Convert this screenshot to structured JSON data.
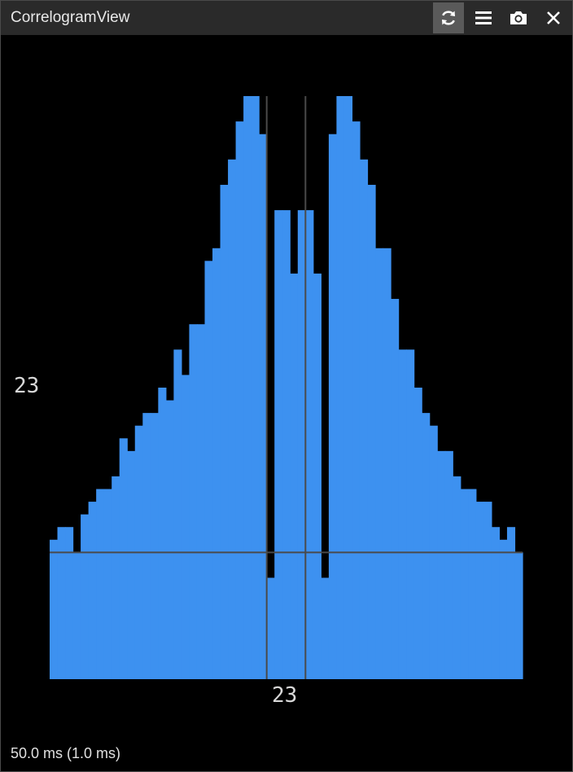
{
  "window": {
    "title": "CorrelogramView",
    "buttons": [
      {
        "name": "refresh-icon",
        "active": true
      },
      {
        "name": "menu-icon",
        "active": false
      },
      {
        "name": "camera-icon",
        "active": false
      },
      {
        "name": "close-icon",
        "active": false
      }
    ]
  },
  "chart_data": {
    "type": "bar",
    "bin_values": [
      11,
      12,
      12,
      10,
      13,
      14,
      15,
      15,
      16,
      19,
      18,
      20,
      21,
      21,
      23,
      22,
      26,
      24,
      28,
      28,
      33,
      34,
      39,
      41,
      44,
      46,
      46,
      43,
      8,
      37,
      37,
      32,
      37,
      37,
      32,
      8,
      43,
      46,
      46,
      44,
      41,
      39,
      34,
      34,
      30,
      26,
      26,
      23,
      21,
      20,
      18,
      18,
      16,
      15,
      15,
      14,
      14,
      12,
      11,
      12,
      10
    ],
    "baseline": 10,
    "ylabel": "23",
    "xlabel": "23",
    "center_lines": true,
    "colors": {
      "bar": "#3d91f0",
      "axis": "#4a4a4a",
      "background": "#000000"
    }
  },
  "footer": {
    "text": "50.0 ms (1.0 ms)"
  }
}
